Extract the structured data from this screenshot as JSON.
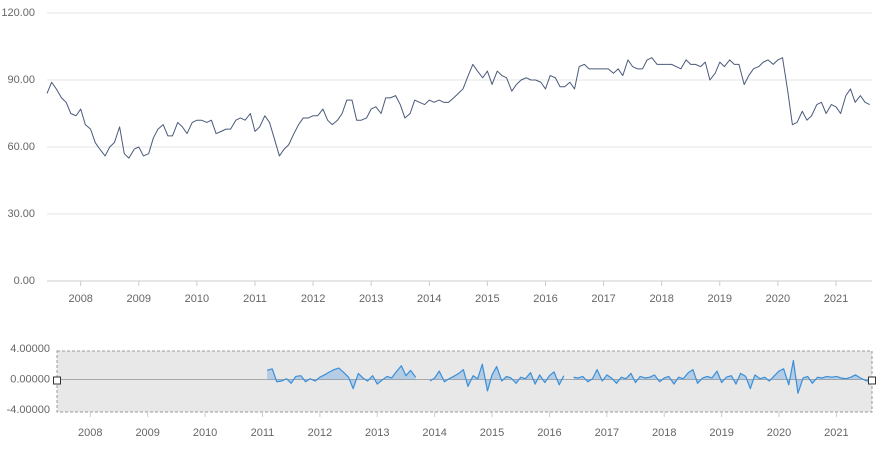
{
  "chart_data": [
    {
      "type": "line",
      "color": "#4a5a7a",
      "xlim": [
        2007.42,
        2021.62
      ],
      "xticks": [
        2008,
        2009,
        2010,
        2011,
        2012,
        2013,
        2014,
        2015,
        2016,
        2017,
        2018,
        2019,
        2020,
        2021
      ],
      "ylim": [
        0,
        120
      ],
      "yticks": [
        {
          "value": 0,
          "label": "0.00"
        },
        {
          "value": 30,
          "label": "30.00"
        },
        {
          "value": 60,
          "label": "60.00"
        },
        {
          "value": 90,
          "label": "90.00"
        },
        {
          "value": 120,
          "label": "120.00"
        }
      ],
      "grid": true,
      "x": [
        2007.42,
        2007.5,
        2007.58,
        2007.67,
        2007.75,
        2007.83,
        2007.92,
        2008,
        2008.08,
        2008.17,
        2008.25,
        2008.33,
        2008.42,
        2008.5,
        2008.58,
        2008.67,
        2008.75,
        2008.83,
        2008.92,
        2009,
        2009.08,
        2009.17,
        2009.25,
        2009.33,
        2009.42,
        2009.5,
        2009.58,
        2009.67,
        2009.75,
        2009.83,
        2009.92,
        2010,
        2010.08,
        2010.17,
        2010.25,
        2010.33,
        2010.42,
        2010.5,
        2010.58,
        2010.67,
        2010.75,
        2010.83,
        2010.92,
        2011,
        2011.08,
        2011.17,
        2011.25,
        2011.33,
        2011.42,
        2011.5,
        2011.58,
        2011.67,
        2011.75,
        2011.83,
        2011.92,
        2012,
        2012.08,
        2012.17,
        2012.25,
        2012.33,
        2012.42,
        2012.5,
        2012.58,
        2012.67,
        2012.75,
        2012.83,
        2012.92,
        2013,
        2013.08,
        2013.17,
        2013.25,
        2013.33,
        2013.42,
        2013.5,
        2013.58,
        2013.67,
        2013.75,
        2013.83,
        2013.92,
        2014,
        2014.08,
        2014.17,
        2014.25,
        2014.33,
        2014.42,
        2014.5,
        2014.58,
        2014.67,
        2014.75,
        2014.83,
        2014.92,
        2015,
        2015.08,
        2015.17,
        2015.25,
        2015.33,
        2015.42,
        2015.5,
        2015.58,
        2015.67,
        2015.75,
        2015.83,
        2015.92,
        2016,
        2016.08,
        2016.17,
        2016.25,
        2016.33,
        2016.42,
        2016.5,
        2016.58,
        2016.67,
        2016.75,
        2016.83,
        2016.92,
        2017,
        2017.08,
        2017.17,
        2017.25,
        2017.33,
        2017.42,
        2017.5,
        2017.58,
        2017.67,
        2017.75,
        2017.83,
        2017.92,
        2018,
        2018.08,
        2018.17,
        2018.25,
        2018.33,
        2018.42,
        2018.5,
        2018.58,
        2018.67,
        2018.75,
        2018.83,
        2018.92,
        2019,
        2019.08,
        2019.17,
        2019.25,
        2019.33,
        2019.42,
        2019.5,
        2019.58,
        2019.67,
        2019.75,
        2019.83,
        2019.92,
        2020,
        2020.08,
        2020.17,
        2020.25,
        2020.33,
        2020.42,
        2020.5,
        2020.58,
        2020.67,
        2020.75,
        2020.83,
        2020.92,
        2021,
        2021.08,
        2021.17,
        2021.25,
        2021.33,
        2021.42,
        2021.5,
        2021.58
      ],
      "values": [
        84,
        89,
        86,
        82,
        80,
        75,
        74,
        77,
        70,
        68,
        62,
        59,
        56,
        60,
        62,
        69,
        57,
        55,
        59,
        60,
        56,
        57,
        64,
        68,
        70,
        65,
        65,
        71,
        69,
        66,
        71,
        72,
        72,
        71,
        72,
        66,
        67,
        68,
        68,
        72,
        73,
        72,
        75,
        67,
        69,
        74,
        71,
        64,
        56,
        59,
        61,
        66,
        70,
        73,
        73,
        74,
        74,
        77,
        72,
        70,
        72,
        75,
        81,
        81,
        72,
        72,
        73,
        77,
        78,
        75,
        82,
        82,
        83,
        79,
        73,
        75,
        81,
        80,
        79,
        81,
        80,
        81,
        80,
        80,
        82,
        84,
        86,
        92,
        97,
        94,
        91,
        94,
        88,
        94,
        92,
        91,
        85,
        88,
        90,
        91,
        90,
        90,
        89,
        86,
        92,
        91,
        87,
        87,
        89,
        86,
        96,
        97,
        95,
        95,
        95,
        95,
        95,
        93,
        95,
        92,
        99,
        96,
        95,
        95,
        99,
        100,
        97,
        97,
        97,
        97,
        96,
        95,
        99,
        97,
        97,
        96,
        98,
        90,
        93,
        98,
        96,
        99,
        97,
        97,
        88,
        92,
        95,
        96,
        98,
        99,
        97,
        99,
        100,
        85,
        70,
        71,
        76,
        72,
        74,
        79,
        80,
        75,
        79,
        78,
        75,
        83,
        86,
        80,
        83,
        80,
        79
      ]
    },
    {
      "type": "area",
      "color": "#3b8fd9",
      "xlim": [
        2007.42,
        2021.62
      ],
      "xticks": [
        2008,
        2009,
        2010,
        2011,
        2012,
        2013,
        2014,
        2015,
        2016,
        2017,
        2018,
        2019,
        2020,
        2021
      ],
      "ylim": [
        -4,
        4
      ],
      "yticks": [
        {
          "value": 4,
          "label": "4.00000"
        },
        {
          "value": 0,
          "label": "0.00000"
        },
        {
          "value": -4,
          "label": "-4.00000"
        }
      ],
      "grid": false,
      "x": [
        2011.08,
        2011.17,
        2011.25,
        2011.33,
        2011.42,
        2011.5,
        2011.58,
        2011.67,
        2011.75,
        2011.83,
        2011.92,
        2012,
        2012.08,
        2012.17,
        2012.25,
        2012.33,
        2012.42,
        2012.5,
        2012.58,
        2012.67,
        2012.75,
        2012.83,
        2012.92,
        2013,
        2013.08,
        2013.17,
        2013.25,
        2013.33,
        2013.42,
        2013.5,
        2013.58,
        2013.67,
        2013.75,
        2013.83,
        2013.92,
        2014,
        2014.08,
        2014.17,
        2014.25,
        2014.33,
        2014.42,
        2014.5,
        2014.58,
        2014.67,
        2014.75,
        2014.83,
        2014.92,
        2015,
        2015.08,
        2015.17,
        2015.25,
        2015.33,
        2015.42,
        2015.5,
        2015.58,
        2015.67,
        2015.75,
        2015.83,
        2015.92,
        2016,
        2016.08,
        2016.17,
        2016.25,
        2016.33,
        2016.42,
        2016.5,
        2016.58,
        2016.67,
        2016.75,
        2016.83,
        2016.92,
        2017,
        2017.08,
        2017.17,
        2017.25,
        2017.33,
        2017.42,
        2017.5,
        2017.58,
        2017.67,
        2017.75,
        2017.83,
        2017.92,
        2018,
        2018.08,
        2018.17,
        2018.25,
        2018.33,
        2018.42,
        2018.5,
        2018.58,
        2018.67,
        2018.75,
        2018.83,
        2018.92,
        2019,
        2019.08,
        2019.17,
        2019.25,
        2019.33,
        2019.42,
        2019.5,
        2019.58,
        2019.67,
        2019.75,
        2019.83,
        2019.92,
        2020,
        2020.08,
        2020.17,
        2020.25,
        2020.33,
        2020.42,
        2020.5,
        2020.58,
        2020.67,
        2020.75,
        2020.83,
        2020.92,
        2021,
        2021.08,
        2021.17,
        2021.25,
        2021.33,
        2021.42,
        2021.5,
        2021.58
      ],
      "values": [
        1.2,
        1.4,
        -0.3,
        -0.2,
        0.1,
        -0.5,
        0.4,
        0.5,
        -0.3,
        0.1,
        -0.2,
        0.3,
        0.6,
        1.0,
        1.3,
        1.5,
        0.9,
        0.3,
        -1.2,
        0.8,
        0.2,
        -0.2,
        0.5,
        -0.6,
        -0.1,
        0.4,
        0.2,
        1.0,
        1.8,
        0.5,
        1.2,
        0.3,
        null,
        null,
        -0.2,
        0.2,
        1.1,
        -0.3,
        0.1,
        0.4,
        0.8,
        1.3,
        -0.9,
        0.5,
        0.1,
        2.0,
        -1.5,
        0.6,
        1.7,
        -0.2,
        0.4,
        0.2,
        -0.5,
        0.3,
        0.1,
        0.9,
        -0.6,
        0.6,
        -0.4,
        0.5,
        1.0,
        -0.7,
        0.5,
        null,
        0.3,
        0.2,
        0.4,
        -0.3,
        0.1,
        1.3,
        -0.2,
        0.6,
        0.2,
        -0.5,
        0.3,
        0.1,
        0.8,
        -0.4,
        0.4,
        0.2,
        0.3,
        0.6,
        -0.3,
        0.2,
        0.4,
        -0.6,
        0.3,
        0.1,
        0.9,
        1.3,
        -0.5,
        0.2,
        0.4,
        0.2,
        1.1,
        -0.4,
        0.3,
        0.5,
        -0.6,
        0.8,
        0.4,
        -1.2,
        0.6,
        0.1,
        0.3,
        -0.2,
        0.5,
        1.1,
        1.4,
        -0.7,
        2.5,
        -1.8,
        0.2,
        0.4,
        -0.5,
        0.3,
        0.2,
        0.4,
        0.3,
        0.4,
        0.2,
        0.1,
        0.3,
        0.6,
        0.2,
        -0.1,
        -0.3
      ]
    }
  ]
}
